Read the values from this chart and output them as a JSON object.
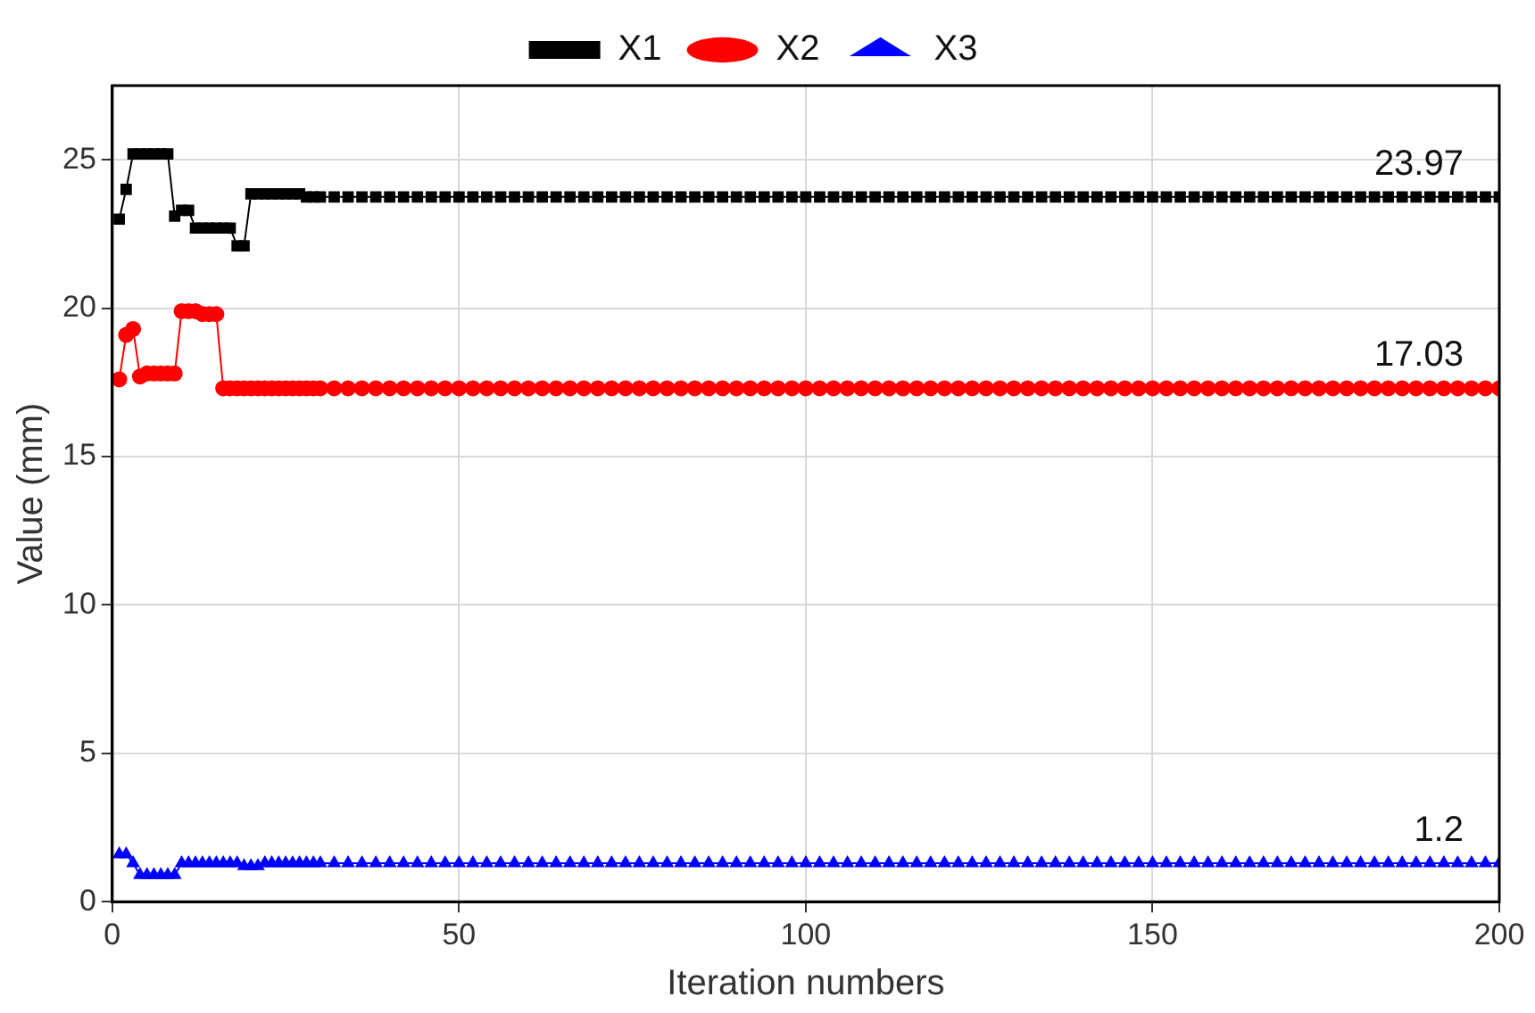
{
  "chart_data": {
    "type": "line",
    "xlabel": "Iteration numbers",
    "ylabel": "Value (mm)",
    "x": [
      1,
      2,
      3,
      4,
      5,
      6,
      7,
      8,
      9,
      10,
      11,
      12,
      13,
      14,
      15,
      16,
      17,
      18,
      19,
      20,
      21,
      22,
      23,
      24,
      25,
      26,
      27,
      28,
      29,
      30,
      32,
      34,
      36,
      38,
      40,
      42,
      44,
      46,
      48,
      50,
      52,
      54,
      56,
      58,
      60,
      62,
      64,
      66,
      68,
      70,
      72,
      74,
      76,
      78,
      80,
      82,
      84,
      86,
      88,
      90,
      92,
      94,
      96,
      98,
      100,
      102,
      104,
      106,
      108,
      110,
      112,
      114,
      116,
      118,
      120,
      122,
      124,
      126,
      128,
      130,
      132,
      134,
      136,
      138,
      140,
      142,
      144,
      146,
      148,
      150,
      152,
      154,
      156,
      158,
      160,
      162,
      164,
      166,
      168,
      170,
      172,
      174,
      176,
      178,
      180,
      182,
      184,
      186,
      188,
      190,
      192,
      194,
      196,
      198,
      200
    ],
    "series": [
      {
        "name": "X1",
        "color": "#000000",
        "marker": "square",
        "values": [
          23.0,
          24.0,
          25.2,
          25.2,
          25.2,
          25.2,
          25.2,
          25.2,
          23.1,
          23.3,
          23.3,
          22.7,
          22.7,
          22.7,
          22.7,
          22.7,
          22.7,
          22.1,
          22.1,
          23.85,
          23.85,
          23.85,
          23.85,
          23.85,
          23.85,
          23.85,
          23.85,
          23.75,
          23.75,
          23.75,
          23.75,
          23.75,
          23.75,
          23.75,
          23.75,
          23.75,
          23.75,
          23.75,
          23.75,
          23.75,
          23.75,
          23.75,
          23.75,
          23.75,
          23.75,
          23.75,
          23.75,
          23.75,
          23.75,
          23.75,
          23.75,
          23.75,
          23.75,
          23.75,
          23.75,
          23.75,
          23.75,
          23.75,
          23.75,
          23.75,
          23.75,
          23.75,
          23.75,
          23.75,
          23.75,
          23.75,
          23.75,
          23.75,
          23.75,
          23.75,
          23.75,
          23.75,
          23.75,
          23.75,
          23.75,
          23.75,
          23.75,
          23.75,
          23.75,
          23.75,
          23.75,
          23.75,
          23.75,
          23.75,
          23.75,
          23.75,
          23.75,
          23.75,
          23.75,
          23.75,
          23.75,
          23.75,
          23.75,
          23.75,
          23.75,
          23.75,
          23.75,
          23.75,
          23.75,
          23.75,
          23.75,
          23.75,
          23.75,
          23.75,
          23.75,
          23.75,
          23.75,
          23.75,
          23.75,
          23.75,
          23.75,
          23.75,
          23.75,
          23.75,
          23.75
        ]
      },
      {
        "name": "X2",
        "color": "#ff0000",
        "marker": "circle",
        "values": [
          17.6,
          19.1,
          19.3,
          17.7,
          17.8,
          17.8,
          17.8,
          17.8,
          17.8,
          19.9,
          19.9,
          19.9,
          19.8,
          19.8,
          19.8,
          17.3,
          17.3,
          17.3,
          17.3,
          17.3,
          17.3,
          17.3,
          17.3,
          17.3,
          17.3,
          17.3,
          17.3,
          17.3,
          17.3,
          17.3,
          17.3,
          17.3,
          17.3,
          17.3,
          17.3,
          17.3,
          17.3,
          17.3,
          17.3,
          17.3,
          17.3,
          17.3,
          17.3,
          17.3,
          17.3,
          17.3,
          17.3,
          17.3,
          17.3,
          17.3,
          17.3,
          17.3,
          17.3,
          17.3,
          17.3,
          17.3,
          17.3,
          17.3,
          17.3,
          17.3,
          17.3,
          17.3,
          17.3,
          17.3,
          17.3,
          17.3,
          17.3,
          17.3,
          17.3,
          17.3,
          17.3,
          17.3,
          17.3,
          17.3,
          17.3,
          17.3,
          17.3,
          17.3,
          17.3,
          17.3,
          17.3,
          17.3,
          17.3,
          17.3,
          17.3,
          17.3,
          17.3,
          17.3,
          17.3,
          17.3,
          17.3,
          17.3,
          17.3,
          17.3,
          17.3,
          17.3,
          17.3,
          17.3,
          17.3,
          17.3,
          17.3,
          17.3,
          17.3,
          17.3,
          17.3,
          17.3,
          17.3,
          17.3,
          17.3,
          17.3,
          17.3,
          17.3,
          17.3,
          17.3,
          17.3
        ]
      },
      {
        "name": "X3",
        "color": "#0000ff",
        "marker": "triangle",
        "values": [
          1.6,
          1.6,
          1.3,
          0.9,
          0.9,
          0.9,
          0.9,
          0.9,
          0.9,
          1.3,
          1.3,
          1.3,
          1.3,
          1.3,
          1.3,
          1.3,
          1.3,
          1.3,
          1.2,
          1.2,
          1.2,
          1.3,
          1.3,
          1.3,
          1.3,
          1.3,
          1.3,
          1.3,
          1.3,
          1.3,
          1.3,
          1.3,
          1.3,
          1.3,
          1.3,
          1.3,
          1.3,
          1.3,
          1.3,
          1.3,
          1.3,
          1.3,
          1.3,
          1.3,
          1.3,
          1.3,
          1.3,
          1.3,
          1.3,
          1.3,
          1.3,
          1.3,
          1.3,
          1.3,
          1.3,
          1.3,
          1.3,
          1.3,
          1.3,
          1.3,
          1.3,
          1.3,
          1.3,
          1.3,
          1.3,
          1.3,
          1.3,
          1.3,
          1.3,
          1.3,
          1.3,
          1.3,
          1.3,
          1.3,
          1.3,
          1.3,
          1.3,
          1.3,
          1.3,
          1.3,
          1.3,
          1.3,
          1.3,
          1.3,
          1.3,
          1.3,
          1.3,
          1.3,
          1.3,
          1.3,
          1.3,
          1.3,
          1.3,
          1.3,
          1.3,
          1.3,
          1.3,
          1.3,
          1.3,
          1.3,
          1.3,
          1.3,
          1.3,
          1.3,
          1.3,
          1.3,
          1.3,
          1.3,
          1.3,
          1.3,
          1.3,
          1.3,
          1.3,
          1.3,
          1.3
        ]
      }
    ],
    "xlim": [
      0,
      200
    ],
    "xticks": [
      0,
      50,
      100,
      150,
      200
    ],
    "ylim": [
      0,
      27.5
    ],
    "yticks": [
      0,
      5,
      10,
      15,
      20,
      25
    ],
    "annotations": [
      "23.97",
      "17.03",
      "1.2"
    ],
    "grid": true,
    "legend": "top"
  }
}
